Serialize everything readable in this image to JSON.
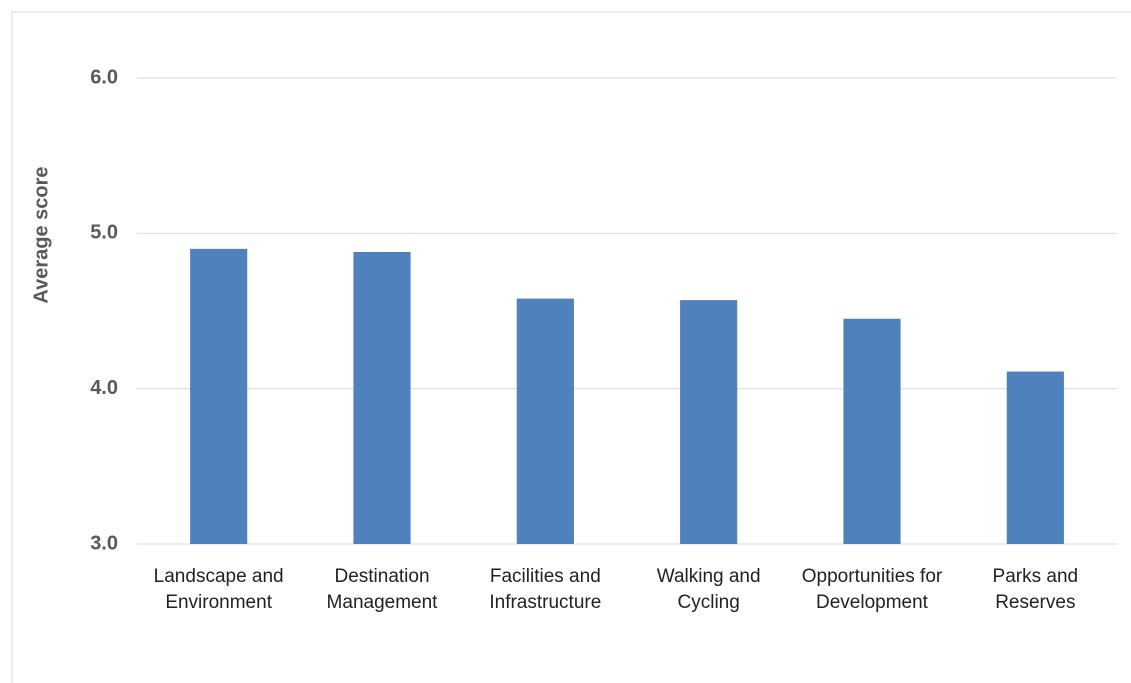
{
  "chart_data": {
    "type": "bar",
    "y_label": "Average score",
    "categories": [
      "Landscape and Environment",
      "Destination Management",
      "Facilities and Infrastructure",
      "Walking and Cycling",
      "Opportunities for Development",
      "Parks and Reserves"
    ],
    "values": [
      4.9,
      4.88,
      4.58,
      4.57,
      4.45,
      4.11
    ],
    "color": "#4f81bd",
    "ylim": [
      3,
      6
    ],
    "yticks": [
      {
        "value": 3,
        "label": "3.0"
      },
      {
        "value": 4,
        "label": "4.0"
      },
      {
        "value": 5,
        "label": "5.0"
      },
      {
        "value": 6,
        "label": "6.0"
      }
    ],
    "grid": true
  }
}
